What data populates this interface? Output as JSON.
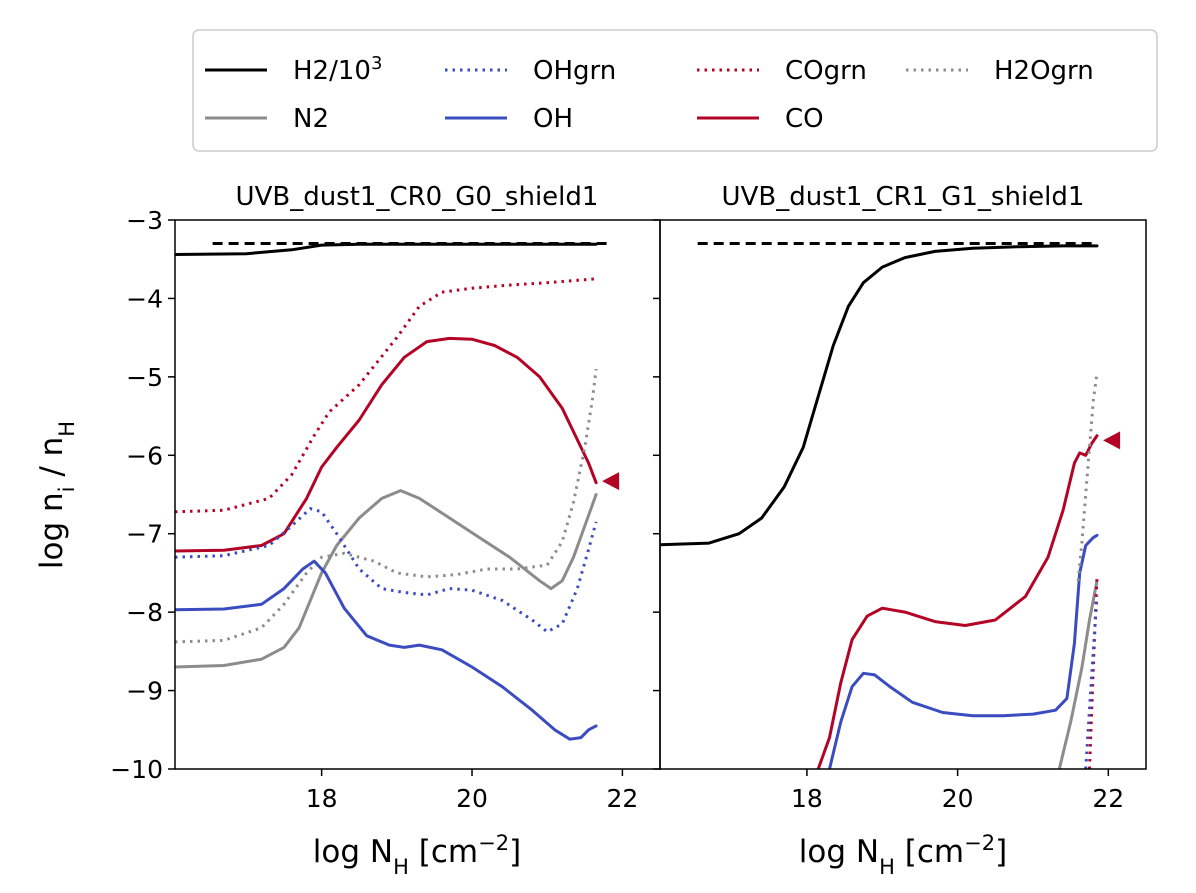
{
  "chart_data": {
    "type": "line",
    "ylabel": "log n_i / n_H",
    "ylim": [
      -10,
      -3
    ],
    "yticks": [
      -10,
      -9,
      -8,
      -7,
      -6,
      -5,
      -4,
      -3
    ],
    "xticks": [
      18,
      20,
      22
    ],
    "legend": {
      "placement": "top",
      "entries": [
        {
          "key": "h2",
          "label": "H2/10",
          "sup": "3",
          "style": "solid",
          "color": "#000000"
        },
        {
          "key": "ohgrn",
          "label": "OHgrn",
          "style": "dotted",
          "color": "#3b4cc0"
        },
        {
          "key": "cogrn",
          "label": "COgrn",
          "style": "dotted",
          "color": "#b40426"
        },
        {
          "key": "h2ogrn",
          "label": "H2Ogrn",
          "style": "dotted",
          "color": "#8c8c8c"
        },
        {
          "key": "n2",
          "label": "N2",
          "style": "solid",
          "color": "#8c8c8c"
        },
        {
          "key": "oh",
          "label": "OH",
          "style": "solid",
          "color": "#3b4cc0"
        },
        {
          "key": "co",
          "label": "CO",
          "style": "solid",
          "color": "#b40426"
        }
      ]
    },
    "panels": [
      {
        "title": "UVB_dust1_CR0_G0_shield1",
        "xlabel": "log N_H [cm^-2]",
        "xlim": [
          16.05,
          22.5
        ],
        "reference_line": {
          "y": -3.3,
          "style": "dashed",
          "color": "#000000"
        },
        "marker": {
          "x": 21.85,
          "y": -6.33,
          "shape": "left-triangle",
          "color": "#b40426"
        },
        "series": [
          {
            "key": "h2",
            "name": "H2/10^3",
            "style": "solid",
            "color": "#000000",
            "x": [
              16.05,
              17.0,
              17.6,
              18.0,
              18.5,
              19.5,
              20.5,
              21.65
            ],
            "y": [
              -3.44,
              -3.43,
              -3.38,
              -3.32,
              -3.31,
              -3.31,
              -3.31,
              -3.31
            ]
          },
          {
            "key": "cogrn",
            "name": "COgrn",
            "style": "dotted",
            "color": "#b40426",
            "x": [
              16.05,
              16.7,
              17.3,
              17.6,
              17.9,
              18.1,
              18.5,
              19.0,
              19.3,
              19.6,
              20.0,
              20.5,
              21.0,
              21.65
            ],
            "y": [
              -6.72,
              -6.7,
              -6.55,
              -6.25,
              -5.75,
              -5.45,
              -5.1,
              -4.5,
              -4.1,
              -3.92,
              -3.87,
              -3.83,
              -3.8,
              -3.75
            ]
          },
          {
            "key": "co",
            "name": "CO",
            "style": "solid",
            "color": "#b40426",
            "x": [
              16.05,
              16.7,
              17.2,
              17.5,
              17.8,
              18.0,
              18.2,
              18.5,
              18.8,
              19.1,
              19.4,
              19.7,
              20.0,
              20.3,
              20.6,
              20.9,
              21.2,
              21.4,
              21.55,
              21.65
            ],
            "y": [
              -7.22,
              -7.21,
              -7.15,
              -7.0,
              -6.55,
              -6.15,
              -5.9,
              -5.55,
              -5.1,
              -4.75,
              -4.55,
              -4.51,
              -4.52,
              -4.6,
              -4.75,
              -5.0,
              -5.4,
              -5.8,
              -6.1,
              -6.35
            ]
          },
          {
            "key": "n2",
            "name": "N2",
            "style": "solid",
            "color": "#8c8c8c",
            "x": [
              16.05,
              16.7,
              17.2,
              17.5,
              17.7,
              17.85,
              18.0,
              18.2,
              18.5,
              18.8,
              19.05,
              19.3,
              19.7,
              20.1,
              20.5,
              20.9,
              21.05,
              21.2,
              21.35,
              21.5,
              21.65
            ],
            "y": [
              -8.7,
              -8.68,
              -8.6,
              -8.45,
              -8.2,
              -7.85,
              -7.5,
              -7.15,
              -6.8,
              -6.55,
              -6.45,
              -6.55,
              -6.8,
              -7.05,
              -7.3,
              -7.6,
              -7.7,
              -7.6,
              -7.3,
              -6.9,
              -6.5
            ]
          },
          {
            "key": "ohgrn",
            "name": "OHgrn",
            "style": "dotted",
            "color": "#3b4cc0",
            "x": [
              16.05,
              16.7,
              17.3,
              17.6,
              17.85,
              18.0,
              18.2,
              18.5,
              18.8,
              19.1,
              19.4,
              19.7,
              20.0,
              20.4,
              20.8,
              21.0,
              21.2,
              21.4,
              21.55,
              21.65
            ],
            "y": [
              -7.3,
              -7.28,
              -7.15,
              -6.9,
              -6.68,
              -6.72,
              -7.0,
              -7.45,
              -7.7,
              -7.75,
              -7.78,
              -7.7,
              -7.72,
              -7.85,
              -8.1,
              -8.25,
              -8.15,
              -7.7,
              -7.2,
              -6.85
            ]
          },
          {
            "key": "h2ogrn",
            "name": "H2Ogrn",
            "style": "dotted",
            "color": "#8c8c8c",
            "x": [
              16.05,
              16.7,
              17.2,
              17.5,
              17.8,
              18.0,
              18.3,
              18.7,
              19.0,
              19.4,
              19.8,
              20.2,
              20.6,
              21.0,
              21.2,
              21.35,
              21.5,
              21.6,
              21.65
            ],
            "y": [
              -8.38,
              -8.36,
              -8.2,
              -7.9,
              -7.5,
              -7.3,
              -7.25,
              -7.35,
              -7.5,
              -7.55,
              -7.52,
              -7.45,
              -7.45,
              -7.4,
              -7.1,
              -6.6,
              -5.9,
              -5.3,
              -4.9
            ]
          },
          {
            "key": "oh",
            "name": "OH",
            "style": "solid",
            "color": "#3b4cc0",
            "x": [
              16.05,
              16.7,
              17.2,
              17.5,
              17.75,
              17.9,
              18.05,
              18.3,
              18.6,
              18.9,
              19.1,
              19.3,
              19.6,
              20.0,
              20.4,
              20.8,
              21.1,
              21.3,
              21.45,
              21.55,
              21.65
            ],
            "y": [
              -7.97,
              -7.96,
              -7.9,
              -7.7,
              -7.45,
              -7.35,
              -7.5,
              -7.95,
              -8.3,
              -8.42,
              -8.45,
              -8.42,
              -8.48,
              -8.7,
              -8.95,
              -9.25,
              -9.5,
              -9.62,
              -9.6,
              -9.5,
              -9.45
            ]
          }
        ]
      },
      {
        "title": "UVB_dust1_CR1_G1_shield1",
        "xlabel": "log N_H [cm^-2]",
        "xlim": [
          16.05,
          22.5
        ],
        "reference_line": {
          "y": -3.3,
          "style": "dashed",
          "color": "#000000"
        },
        "marker": {
          "x": 22.05,
          "y": -5.81,
          "shape": "left-triangle",
          "color": "#b40426"
        },
        "series": [
          {
            "key": "h2",
            "name": "H2/10^3",
            "style": "solid",
            "color": "#000000",
            "x": [
              16.05,
              16.7,
              17.1,
              17.4,
              17.7,
              17.95,
              18.15,
              18.35,
              18.55,
              18.75,
              19.0,
              19.3,
              19.7,
              20.2,
              20.8,
              21.4,
              21.85
            ],
            "y": [
              -7.14,
              -7.12,
              -7.0,
              -6.8,
              -6.4,
              -5.9,
              -5.25,
              -4.6,
              -4.1,
              -3.8,
              -3.6,
              -3.48,
              -3.4,
              -3.36,
              -3.34,
              -3.33,
              -3.33
            ]
          },
          {
            "key": "co",
            "name": "CO",
            "style": "solid",
            "color": "#b40426",
            "x": [
              18.15,
              18.3,
              18.45,
              18.6,
              18.8,
              19.0,
              19.3,
              19.7,
              20.1,
              20.5,
              20.9,
              21.2,
              21.4,
              21.55,
              21.62,
              21.7,
              21.78,
              21.85
            ],
            "y": [
              -10.0,
              -9.6,
              -8.9,
              -8.35,
              -8.05,
              -7.95,
              -8.0,
              -8.12,
              -8.17,
              -8.1,
              -7.8,
              -7.3,
              -6.7,
              -6.1,
              -5.97,
              -6.0,
              -5.85,
              -5.75
            ]
          },
          {
            "key": "oh",
            "name": "OH",
            "style": "solid",
            "color": "#3b4cc0",
            "x": [
              18.3,
              18.45,
              18.6,
              18.75,
              18.9,
              19.1,
              19.4,
              19.8,
              20.2,
              20.6,
              21.0,
              21.3,
              21.45,
              21.55,
              21.62,
              21.7,
              21.8,
              21.85
            ],
            "y": [
              -10.0,
              -9.4,
              -8.95,
              -8.78,
              -8.8,
              -8.95,
              -9.15,
              -9.28,
              -9.32,
              -9.32,
              -9.3,
              -9.25,
              -9.1,
              -8.4,
              -7.5,
              -7.15,
              -7.05,
              -7.02
            ]
          },
          {
            "key": "h2ogrn",
            "name": "H2Ogrn",
            "style": "dotted",
            "color": "#8c8c8c",
            "x": [
              21.6,
              21.65,
              21.7,
              21.75,
              21.8,
              21.85
            ],
            "y": [
              -7.6,
              -7.1,
              -6.5,
              -5.9,
              -5.3,
              -4.95
            ]
          },
          {
            "key": "n2",
            "name": "N2",
            "style": "solid",
            "color": "#8c8c8c",
            "x": [
              21.35,
              21.5,
              21.65,
              21.75,
              21.85
            ],
            "y": [
              -10.0,
              -9.4,
              -8.7,
              -8.1,
              -7.6
            ]
          },
          {
            "key": "cogrn",
            "name": "COgrn",
            "style": "dotted",
            "color": "#b40426",
            "x": [
              21.75,
              21.8,
              21.85
            ],
            "y": [
              -10.0,
              -8.7,
              -7.55
            ]
          },
          {
            "key": "ohgrn",
            "name": "OHgrn",
            "style": "dotted",
            "color": "#3b4cc0",
            "x": [
              21.7,
              21.78,
              21.85
            ],
            "y": [
              -10.0,
              -8.8,
              -7.8
            ]
          }
        ]
      }
    ]
  }
}
